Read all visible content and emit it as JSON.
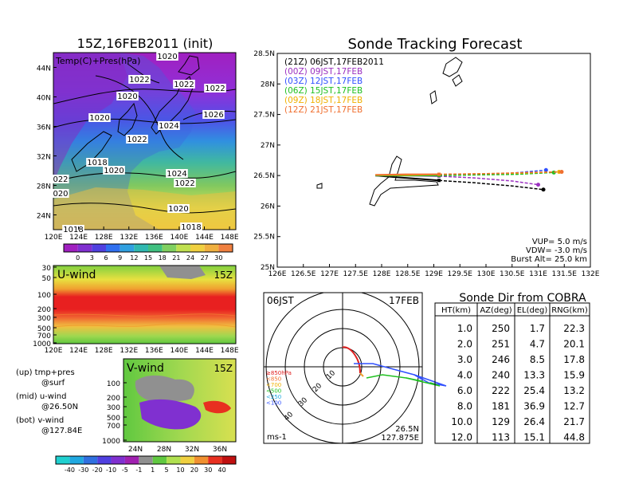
{
  "left_title": "15Z,16FEB2011 (init)",
  "right_title": "Sonde Tracking Forecast",
  "colors": {
    "t00": "#9b30c0",
    "t03": "#3050ff",
    "t06": "#20c020",
    "t09": "#f0b000",
    "t12": "#f07030",
    "t21": "#000000"
  },
  "surface_map": {
    "label": "Temp(C)+Pres(hPa)",
    "lon_ticks": [
      "120E",
      "124E",
      "128E",
      "132E",
      "136E",
      "140E",
      "144E",
      "148E"
    ],
    "lat_ticks": [
      "24N",
      "28N",
      "32N",
      "36N",
      "40N",
      "44N"
    ],
    "isobars": [
      "1020",
      "1022",
      "1020",
      "1022",
      "1022",
      "1020",
      "1024",
      "1026",
      "1022",
      "1018",
      "1020",
      "1024",
      "1022",
      "022",
      "020",
      "1020",
      "1018",
      "1018"
    ],
    "colorbar_ticks": [
      "0",
      "3",
      "6",
      "9",
      "12",
      "15",
      "18",
      "21",
      "24",
      "27",
      "30"
    ]
  },
  "u_wind": {
    "label": "U-wind",
    "time": "15Z",
    "p_ticks": [
      "30",
      "50",
      "100",
      "200",
      "300",
      "500",
      "700",
      "1000"
    ],
    "lon_ticks": [
      "120E",
      "124E",
      "128E",
      "132E",
      "136E",
      "140E",
      "144E",
      "148E"
    ]
  },
  "v_wind": {
    "label": "V-wind",
    "time": "15Z",
    "p_ticks": [
      "100",
      "200",
      "300",
      "500",
      "700",
      "1000"
    ],
    "lat_ticks": [
      "24N",
      "28N",
      "32N",
      "36N"
    ],
    "colorbar_ticks": [
      "-40",
      "-30",
      "-20",
      "-10",
      "-5",
      "-1",
      "1",
      "5",
      "10",
      "20",
      "30",
      "40"
    ]
  },
  "notes": [
    {
      "a": "(up) tmp+pres",
      "b": "@surf"
    },
    {
      "a": "(mid) u-wind",
      "b": "@26.50N"
    },
    {
      "a": "(bot) v-wind",
      "b": "@127.84E"
    }
  ],
  "track": {
    "legend": [
      {
        "text": "(21Z)  06JST,17FEB2011",
        "key": "t21"
      },
      {
        "text": "(00Z)  09JST,17FEB",
        "key": "t00"
      },
      {
        "text": "(03Z)  12JST,17FEB",
        "key": "t03"
      },
      {
        "text": "(06Z)  15JST,17FEB",
        "key": "t06"
      },
      {
        "text": "(09Z)  18JST,17FEB",
        "key": "t09"
      },
      {
        "text": "(12Z)  21JST,17FEB",
        "key": "t12"
      }
    ],
    "lat_ticks": [
      "25N",
      "25.5N",
      "26N",
      "26.5N",
      "27N",
      "27.5N",
      "28N",
      "28.5N"
    ],
    "lon_ticks": [
      "126E",
      "126.5E",
      "127E",
      "127.5E",
      "128E",
      "128.5E",
      "129E",
      "129.5E",
      "130E",
      "130.5E",
      "131E",
      "131.5E",
      "132E"
    ],
    "params": [
      "VUP=  5.0  m/s",
      "VDW= -3.0  m/s",
      "Burst Alt=  25.0  km"
    ]
  },
  "chart_data": [
    {
      "type": "line",
      "title": "Sonde Tracking Forecast",
      "xlabel": "",
      "ylabel": "",
      "xlim": [
        126,
        132
      ],
      "ylim": [
        25,
        28.5
      ],
      "grid": false,
      "legend": "top-left",
      "series": [
        {
          "name": "(21Z) 06JST,17FEB2011",
          "color_key": "t21",
          "ascent": [
            [
              127.88,
              26.5
            ],
            [
              128.3,
              26.47
            ],
            [
              128.8,
              26.44
            ],
            [
              129.1,
              26.42
            ]
          ],
          "descent": [
            [
              129.1,
              26.42
            ],
            [
              129.8,
              26.38
            ],
            [
              130.5,
              26.33
            ],
            [
              131.1,
              26.27
            ]
          ]
        },
        {
          "name": "(00Z) 09JST,17FEB",
          "color_key": "t00",
          "ascent": [
            [
              127.88,
              26.5
            ],
            [
              128.5,
              26.5
            ],
            [
              129.1,
              26.49
            ]
          ],
          "descent": [
            [
              129.1,
              26.49
            ],
            [
              129.8,
              26.46
            ],
            [
              130.5,
              26.41
            ],
            [
              131.0,
              26.35
            ]
          ]
        },
        {
          "name": "(03Z) 12JST,17FEB",
          "color_key": "t03",
          "ascent": [
            [
              127.88,
              26.5
            ],
            [
              128.5,
              26.51
            ],
            [
              129.1,
              26.51
            ]
          ],
          "descent": [
            [
              129.1,
              26.51
            ],
            [
              129.8,
              26.52
            ],
            [
              130.5,
              26.54
            ],
            [
              131.15,
              26.59
            ]
          ]
        },
        {
          "name": "(06Z) 15JST,17FEB",
          "color_key": "t06",
          "ascent": [
            [
              127.88,
              26.5
            ],
            [
              128.5,
              26.5
            ],
            [
              129.1,
              26.5
            ]
          ],
          "descent": [
            [
              129.1,
              26.5
            ],
            [
              129.8,
              26.51
            ],
            [
              130.6,
              26.52
            ],
            [
              131.3,
              26.55
            ]
          ]
        },
        {
          "name": "(09Z) 18JST,17FEB",
          "color_key": "t09",
          "ascent": [
            [
              127.88,
              26.51
            ],
            [
              128.5,
              26.51
            ],
            [
              129.1,
              26.52
            ]
          ],
          "descent": [
            [
              129.1,
              26.52
            ],
            [
              129.9,
              26.53
            ],
            [
              130.7,
              26.54
            ],
            [
              131.4,
              26.56
            ]
          ]
        },
        {
          "name": "(12Z) 21JST,17FEB",
          "color_key": "t12",
          "ascent": [
            [
              127.88,
              26.51
            ],
            [
              128.5,
              26.52
            ],
            [
              129.1,
              26.52
            ]
          ],
          "descent": [
            [
              129.1,
              26.52
            ],
            [
              130.0,
              26.53
            ],
            [
              130.8,
              26.55
            ],
            [
              131.45,
              26.56
            ]
          ]
        }
      ]
    },
    {
      "type": "table",
      "title": "Sonde Dir from COBRA",
      "columns": [
        "HT(km)",
        "AZ(deg)",
        "EL(deg)",
        "RNG(km)"
      ],
      "rows": [
        [
          "1.0",
          "250",
          "1.7",
          "22.3"
        ],
        [
          "2.0",
          "251",
          "4.7",
          "20.1"
        ],
        [
          "3.0",
          "246",
          "8.5",
          "17.8"
        ],
        [
          "4.0",
          "240",
          "13.3",
          "15.9"
        ],
        [
          "6.0",
          "222",
          "25.4",
          "13.2"
        ],
        [
          "8.0",
          "181",
          "36.9",
          "12.7"
        ],
        [
          "10.0",
          "129",
          "26.4",
          "21.7"
        ],
        [
          "12.0",
          "113",
          "15.1",
          "44.8"
        ]
      ]
    },
    {
      "type": "scatter",
      "title": "",
      "polar": true,
      "time_label": "06JST",
      "date_label": "17FEB",
      "unit_label": "ms-1",
      "location": [
        "26.5N",
        "127.875E"
      ],
      "ring_labels": [
        "10",
        "20",
        "30",
        "40"
      ],
      "legend_levels": [
        "≥850hPa",
        "<850",
        "<700",
        "<500",
        "<250",
        "<100"
      ]
    }
  ]
}
